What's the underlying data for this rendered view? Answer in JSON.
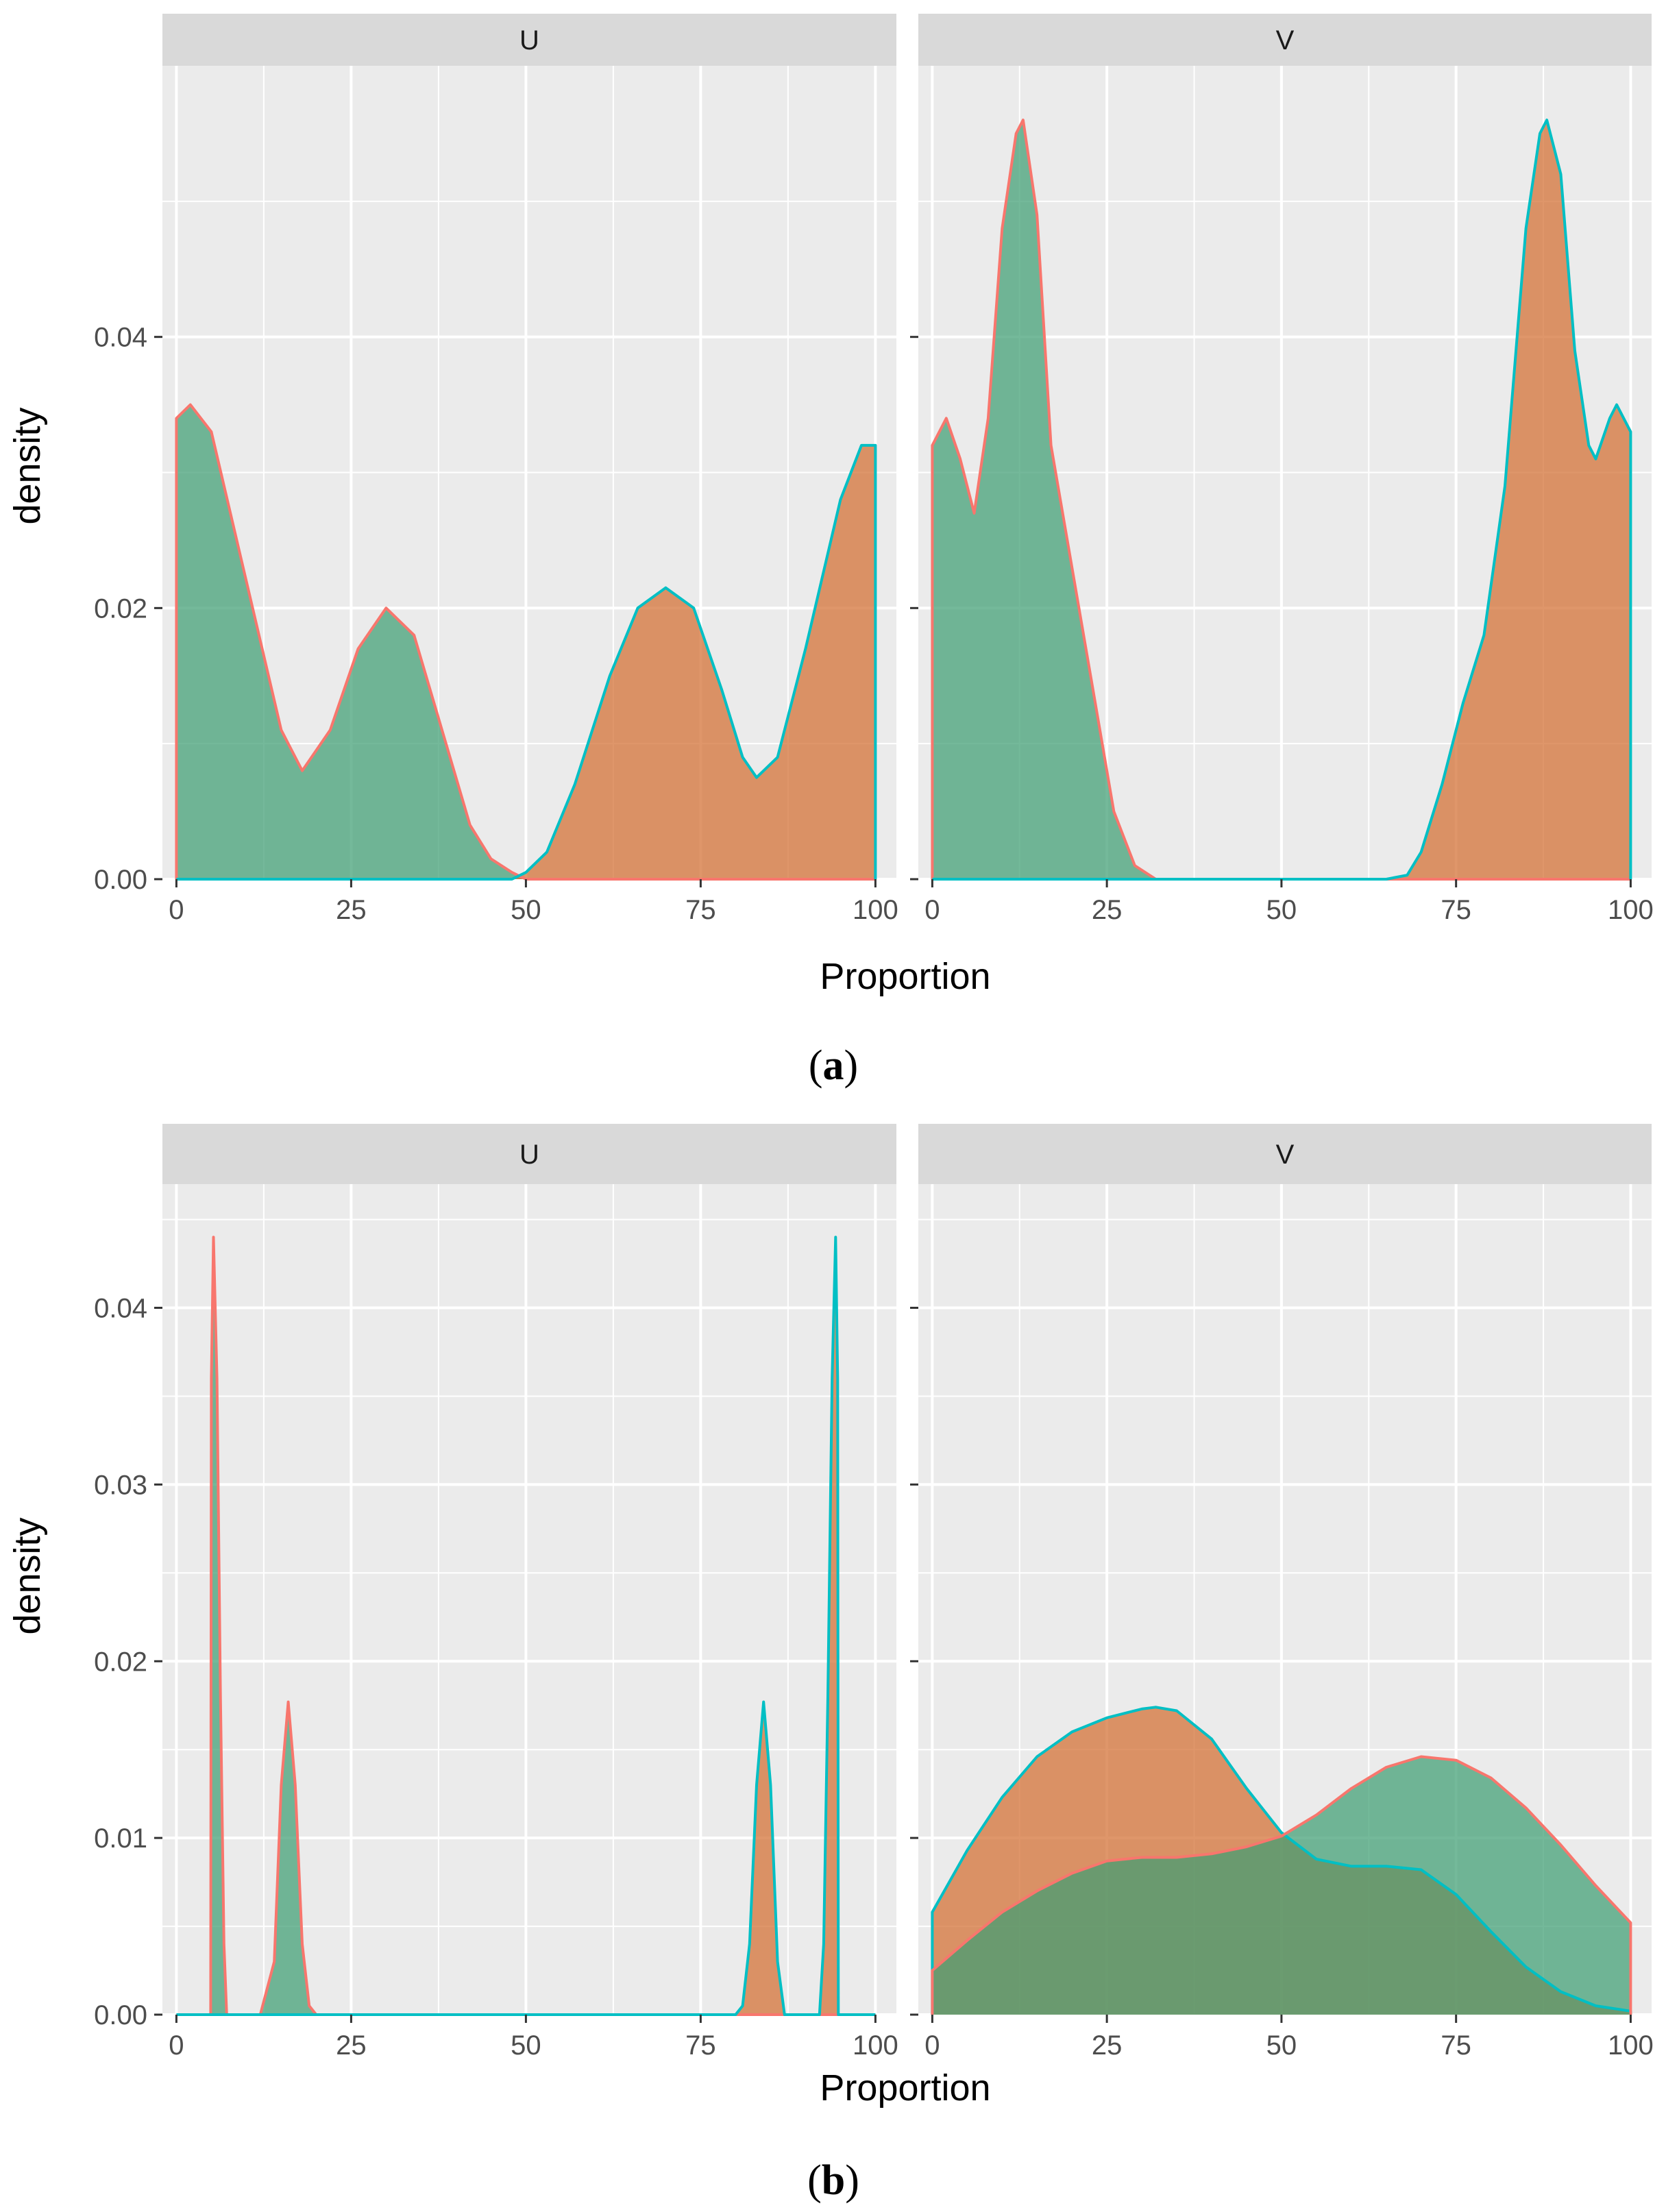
{
  "figure": {
    "captions": [
      {
        "prefix": "(",
        "letter": "a",
        "suffix": ")"
      },
      {
        "prefix": "(",
        "letter": "b",
        "suffix": ")"
      }
    ]
  },
  "colors": {
    "red_line": "#F8766D",
    "cyan_line": "#00BFC4",
    "green_fill": "#3E9E73",
    "orange_fill": "#D36D31",
    "brown_fill": "#9C6A38",
    "panel_bg": "#EBEBEB",
    "strip_bg": "#D9D9D9",
    "grid": "#FFFFFF"
  },
  "chart_data": [
    {
      "type": "area",
      "id": "a",
      "xlabel": "Proportion",
      "ylabel": "density",
      "xlim": [
        -2,
        103
      ],
      "ylim": [
        0,
        0.06
      ],
      "xticks": [
        0,
        25,
        50,
        75,
        100
      ],
      "xtick_labels": [
        "0",
        "25",
        "50",
        "75",
        "100"
      ],
      "yticks": [
        0,
        0.02,
        0.04
      ],
      "ytick_labels": [
        "0.00",
        "0.02",
        "0.04"
      ],
      "panels": [
        {
          "strip": "U",
          "series": [
            {
              "name": "red-outline",
              "line": "red",
              "fill": "green",
              "x": [
                0,
                2,
                5,
                10,
                15,
                18,
                22,
                26,
                30,
                34,
                38,
                42,
                45,
                48,
                50,
                52,
                55,
                100
              ],
              "y": [
                0.034,
                0.035,
                0.033,
                0.022,
                0.011,
                0.008,
                0.011,
                0.017,
                0.02,
                0.018,
                0.011,
                0.004,
                0.0015,
                0.0005,
                0,
                0,
                0,
                0
              ]
            },
            {
              "name": "cyan-outline",
              "line": "cyan",
              "fill": "orange",
              "x": [
                0,
                45,
                48,
                50,
                53,
                57,
                62,
                66,
                70,
                74,
                78,
                81,
                83,
                86,
                90,
                95,
                98,
                100
              ],
              "y": [
                0,
                0,
                0,
                0.0005,
                0.002,
                0.007,
                0.015,
                0.02,
                0.0215,
                0.02,
                0.014,
                0.009,
                0.0075,
                0.009,
                0.017,
                0.028,
                0.032,
                0.032
              ]
            }
          ]
        },
        {
          "strip": "V",
          "series": [
            {
              "name": "red-outline",
              "line": "red",
              "fill": "green",
              "x": [
                0,
                2,
                4,
                6,
                8,
                10,
                12,
                13,
                15,
                17,
                20,
                23,
                26,
                29,
                32,
                35,
                100
              ],
              "y": [
                0.032,
                0.034,
                0.031,
                0.027,
                0.034,
                0.048,
                0.055,
                0.056,
                0.049,
                0.032,
                0.023,
                0.014,
                0.005,
                0.001,
                0,
                0,
                0
              ]
            },
            {
              "name": "cyan-outline",
              "line": "cyan",
              "fill": "orange",
              "x": [
                0,
                65,
                68,
                70,
                73,
                76,
                79,
                82,
                85,
                87,
                88,
                90,
                92,
                94,
                95,
                97,
                98,
                100
              ],
              "y": [
                0,
                0,
                0.0003,
                0.002,
                0.007,
                0.013,
                0.018,
                0.029,
                0.048,
                0.055,
                0.056,
                0.052,
                0.039,
                0.032,
                0.031,
                0.034,
                0.035,
                0.033
              ]
            }
          ]
        }
      ]
    },
    {
      "type": "area",
      "id": "b",
      "xlabel": "Proportion",
      "ylabel": "density",
      "xlim": [
        -2,
        103
      ],
      "ylim": [
        0,
        0.047
      ],
      "xticks": [
        0,
        25,
        50,
        75,
        100
      ],
      "xtick_labels": [
        "0",
        "25",
        "50",
        "75",
        "100"
      ],
      "yticks": [
        0,
        0.01,
        0.02,
        0.03,
        0.04
      ],
      "ytick_labels": [
        "0.00",
        "0.01",
        "0.02",
        "0.03",
        "0.04"
      ],
      "panels": [
        {
          "strip": "U",
          "series": [
            {
              "name": "red-outline",
              "line": "red",
              "fill": "green",
              "x": [
                0,
                4.9,
                5.0,
                5.3,
                5.8,
                6.3,
                6.8,
                7.2,
                12,
                14,
                15,
                16,
                17,
                18,
                19,
                20,
                100
              ],
              "y": [
                0,
                0,
                0.036,
                0.044,
                0.036,
                0.018,
                0.004,
                0,
                0,
                0.003,
                0.013,
                0.0177,
                0.013,
                0.004,
                0.0005,
                0,
                0
              ]
            },
            {
              "name": "cyan-outline",
              "line": "cyan",
              "fill": "orange",
              "x": [
                0,
                80,
                81,
                82,
                83,
                84,
                85,
                86,
                87,
                92,
                92.6,
                93.2,
                93.8,
                94.3,
                94.6,
                94.7,
                100
              ],
              "y": [
                0,
                0,
                0.0005,
                0.004,
                0.013,
                0.0177,
                0.013,
                0.003,
                0,
                0,
                0.004,
                0.018,
                0.036,
                0.044,
                0.036,
                0,
                0
              ]
            }
          ]
        },
        {
          "strip": "V",
          "series": [
            {
              "name": "cyan-outline",
              "line": "cyan",
              "fill": "orange",
              "x": [
                0,
                5,
                10,
                15,
                20,
                25,
                30,
                32,
                35,
                40,
                45,
                50,
                55,
                60,
                65,
                70,
                75,
                80,
                85,
                90,
                95,
                100
              ],
              "y": [
                0.0058,
                0.0093,
                0.0123,
                0.0146,
                0.016,
                0.0168,
                0.0173,
                0.0174,
                0.0172,
                0.0156,
                0.0128,
                0.0103,
                0.0088,
                0.0084,
                0.0084,
                0.0082,
                0.0068,
                0.0047,
                0.0027,
                0.0013,
                0.0005,
                0.0002
              ]
            },
            {
              "name": "red-outline",
              "line": "red",
              "fill": "green",
              "x": [
                0,
                5,
                10,
                15,
                20,
                25,
                30,
                35,
                40,
                45,
                50,
                55,
                60,
                65,
                70,
                75,
                80,
                85,
                90,
                95,
                100
              ],
              "y": [
                0.0025,
                0.0042,
                0.0058,
                0.007,
                0.008,
                0.0087,
                0.0089,
                0.0089,
                0.0091,
                0.0095,
                0.0101,
                0.0113,
                0.0128,
                0.014,
                0.0146,
                0.0144,
                0.0134,
                0.0117,
                0.0096,
                0.0073,
                0.0052
              ]
            }
          ]
        }
      ]
    }
  ]
}
